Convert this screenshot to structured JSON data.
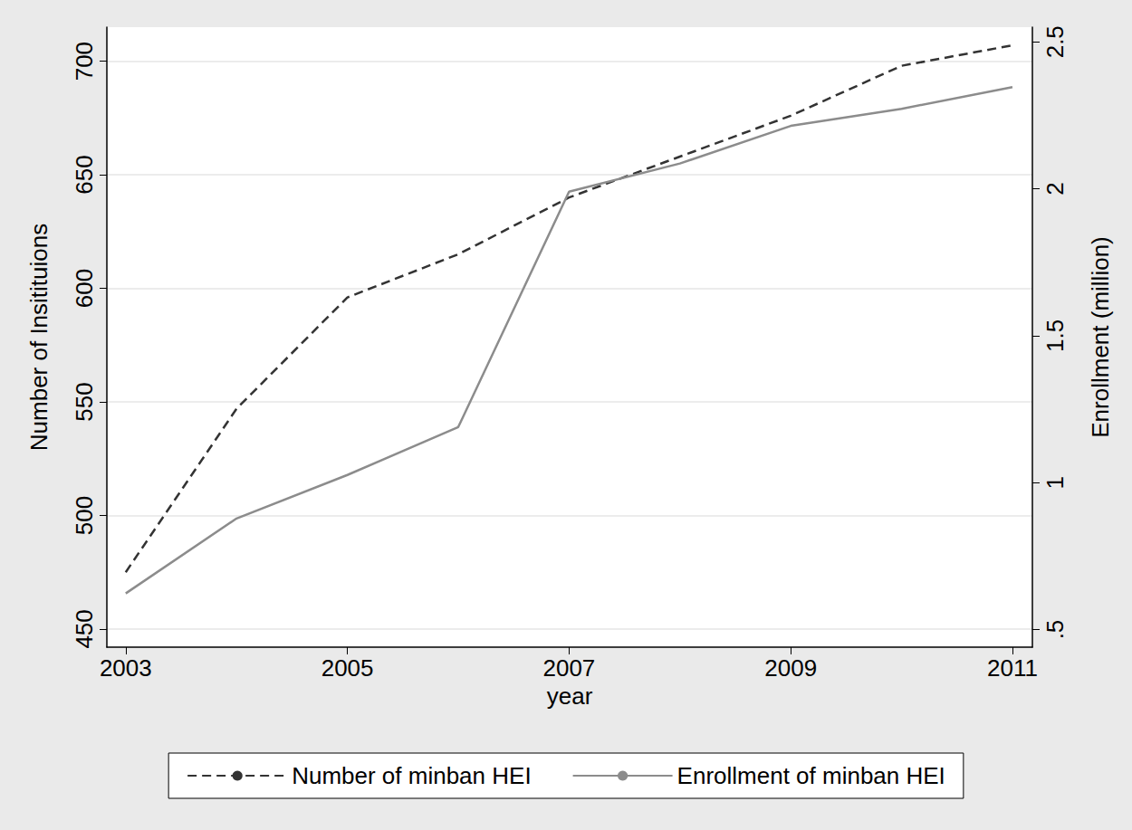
{
  "chart_data": {
    "type": "line",
    "xlabel": "year",
    "ylabel": "Number of Insitituions",
    "y2label": "Enrollment (million)",
    "x": [
      2003,
      2004,
      2005,
      2006,
      2007,
      2008,
      2009,
      2010,
      2011
    ],
    "xlim": [
      2002.83,
      2011.18
    ],
    "xticks": [
      2003,
      2005,
      2007,
      2009,
      2011
    ],
    "ylim": [
      442,
      715
    ],
    "yticks": [
      450,
      500,
      550,
      600,
      650,
      700
    ],
    "y2lim": [
      0.44,
      2.55
    ],
    "y2ticks": [
      {
        "value": 0.5,
        "label": ".5"
      },
      1,
      1.5,
      2,
      2.5
    ],
    "grid": true,
    "legend": "bottom",
    "series": [
      {
        "name": "Number of minban HEI",
        "color": "#333333",
        "line_style": "dashed",
        "values": [
          475,
          547,
          596,
          615,
          640,
          658,
          676,
          698,
          707
        ]
      },
      {
        "name": "Enrollment of minban HEI",
        "color": "#8c8c8c",
        "line_style": "solid",
        "axis": "y2",
        "values": [
          0.623,
          0.878,
          1.026,
          1.189,
          1.99,
          2.086,
          2.214,
          2.272,
          2.346
        ]
      }
    ]
  }
}
